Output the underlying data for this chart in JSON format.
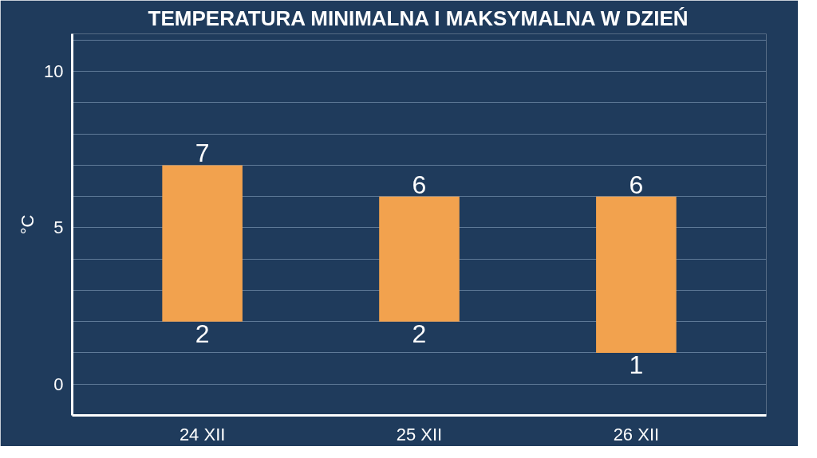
{
  "chart_data": {
    "type": "bar",
    "title": "TEMPERATURA MINIMALNA I MAKSYMALNA W DZIEŃ",
    "ylabel": "°C",
    "categories": [
      "24 XII",
      "25 XII",
      "26 XII"
    ],
    "base": [
      2,
      2,
      1
    ],
    "values": [
      5,
      4,
      5
    ],
    "color": "#f2a24e",
    "ylim": [
      -1,
      11.2
    ],
    "yticks": [
      0,
      {
        "value": 1,
        "label": null
      },
      {
        "value": 2,
        "label": null
      },
      {
        "value": 3,
        "label": null
      },
      {
        "value": 4,
        "label": null
      },
      5,
      {
        "value": 6,
        "label": null
      },
      {
        "value": 7,
        "label": null
      },
      {
        "value": 8,
        "label": null
      },
      {
        "value": 9,
        "label": null
      },
      10,
      {
        "value": 11,
        "label": null
      }
    ],
    "grid": "y",
    "annotations": [
      {
        "text": "7",
        "x": "24 XII",
        "y": 7
      },
      {
        "text": "2",
        "x": "24 XII",
        "y": 2
      },
      {
        "text": "6",
        "x": "25 XII",
        "y": 6
      },
      {
        "text": "2",
        "x": "25 XII",
        "y": 2
      },
      {
        "text": "6",
        "x": "26 XII",
        "y": 6
      },
      {
        "text": "1",
        "x": "26 XII",
        "y": 1
      }
    ]
  }
}
